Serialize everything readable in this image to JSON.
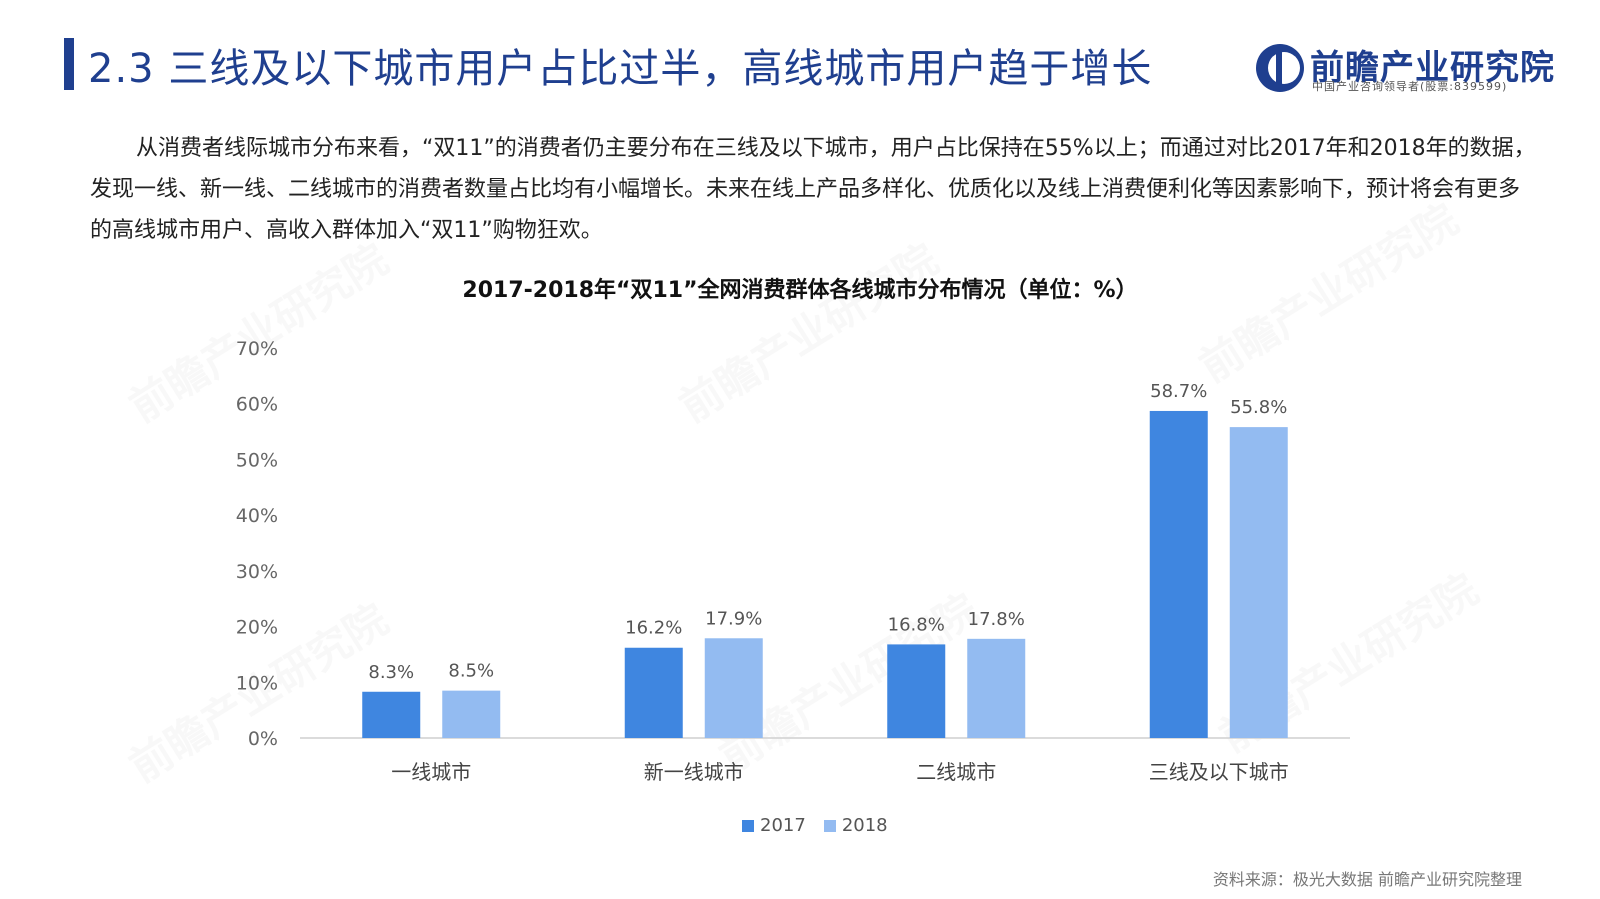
{
  "header": {
    "title": "2.3 三线及以下城市用户占比过半，高线城市用户趋于增长"
  },
  "logo": {
    "name": "前瞻产业研究院",
    "subtitle": "中国产业咨询领导者(股票:839599)"
  },
  "intro": {
    "text": "从消费者线际城市分布来看，“双11”的消费者仍主要分布在三线及以下城市，用户占比保持在55%以上；而通过对比2017年和2018年的数据，发现一线、新一线、二线城市的消费者数量占比均有小幅增长。未来在线上产品多样化、优质化以及线上消费便利化等因素影响下，预计将会有更多的高线城市用户、高收入群体加入“双11”购物狂欢。"
  },
  "chart_data": {
    "type": "bar",
    "title": "2017-2018年“双11”全网消费群体各线城市分布情况（单位：%）",
    "categories": [
      "一线城市",
      "新一线城市",
      "二线城市",
      "三线及以下城市"
    ],
    "series": [
      {
        "name": "2017",
        "values": [
          8.3,
          16.2,
          16.8,
          58.7
        ],
        "color": "#3f86e0"
      },
      {
        "name": "2018",
        "values": [
          8.5,
          17.9,
          17.8,
          55.8
        ],
        "color": "#93bbf1"
      }
    ],
    "value_labels": [
      [
        "8.3%",
        "16.2%",
        "16.8%",
        "58.7%"
      ],
      [
        "8.5%",
        "17.9%",
        "17.8%",
        "55.8%"
      ]
    ],
    "y_ticks": [
      "0%",
      "10%",
      "20%",
      "30%",
      "40%",
      "50%",
      "60%",
      "70%"
    ],
    "ylim": [
      0,
      70
    ],
    "grid": false,
    "legend_position": "bottom"
  },
  "footer": {
    "source": "资料来源：极光大数据 前瞻产业研究院整理"
  },
  "watermark": {
    "text": "前瞻产业研究院"
  },
  "colors": {
    "brand": "#1f3f8f",
    "series_2017": "#3f86e0",
    "series_2018": "#93bbf1"
  }
}
